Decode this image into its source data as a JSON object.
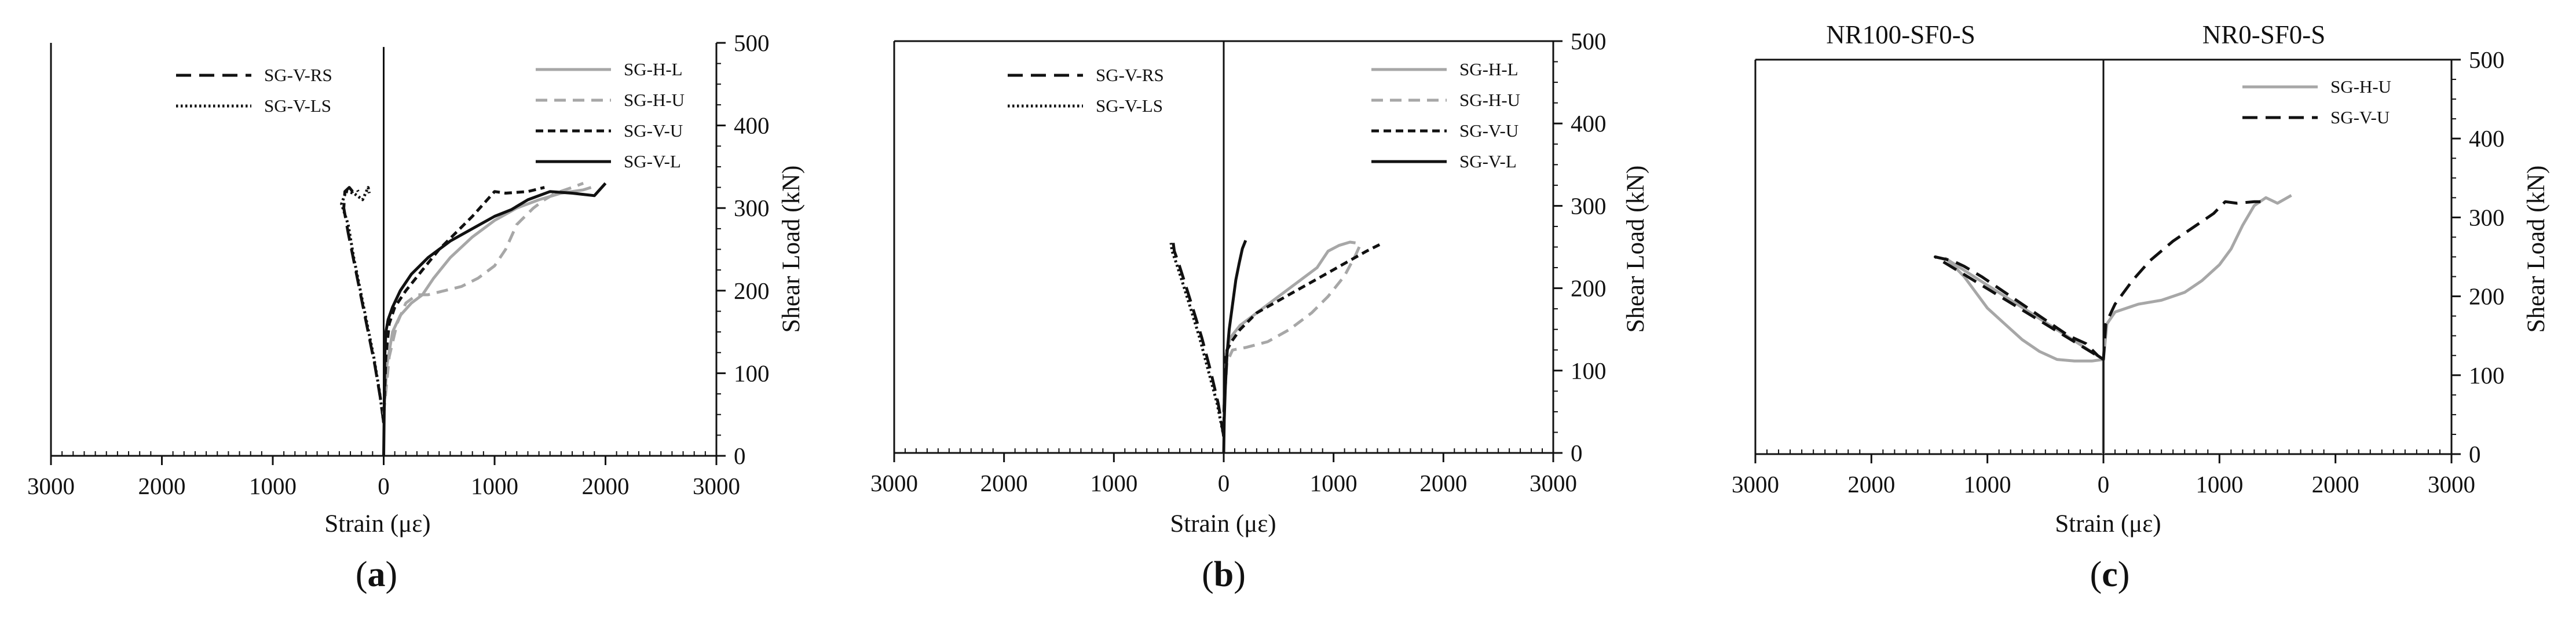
{
  "colors": {
    "axis": "#111111",
    "black": "#111111",
    "gray": "#a7a7a7"
  },
  "chart_data": [
    {
      "type": "line",
      "panel_label": "(a)",
      "subtitles": [],
      "xlabel": "Strain (με)",
      "ylabel": "Shear Load (kN)",
      "xlim": [
        -3000,
        3000
      ],
      "ylim": [
        0,
        500
      ],
      "x_ticks": [
        -3000,
        -2000,
        -1000,
        0,
        1000,
        2000,
        3000
      ],
      "x_tick_labels": [
        "3000",
        "2000",
        "1000",
        "0",
        "1000",
        "2000",
        "3000"
      ],
      "y_ticks": [
        0,
        100,
        200,
        300,
        400,
        500
      ],
      "y_tick_labels": [
        "0",
        "100",
        "200",
        "300",
        "400",
        "500"
      ],
      "frame": "left-top-open",
      "legends": [
        {
          "placement": "top-left",
          "entries": [
            "SG-V-RS",
            "SG-V-LS"
          ]
        },
        {
          "placement": "top-right",
          "entries": [
            "SG-H-L",
            "SG-H-U",
            "SG-V-U",
            "SG-V-L"
          ]
        }
      ],
      "series": [
        {
          "name": "SG-V-RS",
          "color": "black",
          "dash": "long",
          "x": [
            0,
            -30,
            -80,
            -140,
            -200,
            -260,
            -320,
            -360,
            -350,
            -310,
            -280,
            -250,
            -230
          ],
          "y": [
            40,
            70,
            110,
            150,
            190,
            230,
            270,
            300,
            320,
            325,
            320,
            325,
            320
          ]
        },
        {
          "name": "SG-V-LS",
          "color": "black",
          "dash": "dot",
          "x": [
            0,
            -40,
            -90,
            -150,
            -210,
            -270,
            -320,
            -380,
            -340,
            -270,
            -190,
            -140,
            -130
          ],
          "y": [
            40,
            80,
            120,
            160,
            200,
            240,
            280,
            305,
            320,
            318,
            310,
            325,
            318
          ]
        },
        {
          "name": "SG-H-L",
          "color": "gray",
          "dash": "solid",
          "x": [
            0,
            30,
            80,
            150,
            250,
            350,
            450,
            600,
            800,
            1000,
            1200,
            1400,
            1600,
            1800,
            1870
          ],
          "y": [
            50,
            110,
            150,
            170,
            185,
            195,
            215,
            240,
            265,
            285,
            300,
            310,
            318,
            322,
            325
          ]
        },
        {
          "name": "SG-H-U",
          "color": "gray",
          "dash": "dash",
          "x": [
            0,
            50,
            120,
            200,
            300,
            400,
            550,
            700,
            850,
            1000,
            1100,
            1200,
            1350,
            1450,
            1550,
            1700,
            1800
          ],
          "y": [
            50,
            120,
            160,
            185,
            195,
            195,
            200,
            205,
            215,
            230,
            250,
            280,
            300,
            310,
            318,
            325,
            330
          ]
        },
        {
          "name": "SG-V-U",
          "color": "black",
          "dash": "short",
          "x": [
            0,
            20,
            50,
            100,
            200,
            350,
            500,
            650,
            800,
            900,
            1000,
            1100,
            1300,
            1450
          ],
          "y": [
            40,
            120,
            160,
            180,
            200,
            225,
            250,
            270,
            290,
            305,
            320,
            318,
            320,
            325
          ]
        },
        {
          "name": "SG-V-L",
          "color": "black",
          "dash": "solid",
          "x": [
            0,
            5,
            10,
            20,
            40,
            80,
            150,
            250,
            400,
            600,
            800,
            1000,
            1150,
            1300,
            1500,
            1700,
            1900,
            2000
          ],
          "y": [
            0,
            60,
            120,
            150,
            165,
            180,
            200,
            220,
            240,
            260,
            275,
            290,
            298,
            310,
            320,
            318,
            315,
            330
          ]
        },
        {
          "name": "baseline",
          "color": "black",
          "dash": "solid",
          "x": [
            0,
            0
          ],
          "y": [
            0,
            495
          ]
        }
      ]
    },
    {
      "type": "line",
      "panel_label": "(b)",
      "subtitles": [],
      "xlabel": "Strain (με)",
      "ylabel": "Shear Load (kN)",
      "xlim": [
        -3000,
        3000
      ],
      "ylim": [
        0,
        500
      ],
      "x_ticks": [
        -3000,
        -2000,
        -1000,
        0,
        1000,
        2000,
        3000
      ],
      "x_tick_labels": [
        "3000",
        "2000",
        "1000",
        "0",
        "1000",
        "2000",
        "3000"
      ],
      "y_ticks": [
        0,
        100,
        200,
        300,
        400,
        500
      ],
      "y_tick_labels": [
        "0",
        "100",
        "200",
        "300",
        "400",
        "500"
      ],
      "frame": "boxed",
      "legends": [
        {
          "placement": "top-left",
          "entries": [
            "SG-V-RS",
            "SG-V-LS"
          ]
        },
        {
          "placement": "top-right",
          "entries": [
            "SG-H-L",
            "SG-H-U",
            "SG-V-U",
            "SG-V-L"
          ]
        }
      ],
      "series": [
        {
          "name": "SG-V-RS",
          "color": "black",
          "dash": "long",
          "x": [
            0,
            -50,
            -120,
            -200,
            -280,
            -350,
            -410,
            -450,
            -460
          ],
          "y": [
            20,
            60,
            100,
            140,
            175,
            205,
            230,
            245,
            255
          ]
        },
        {
          "name": "SG-V-LS",
          "color": "black",
          "dash": "dot",
          "x": [
            0,
            -60,
            -140,
            -220,
            -300,
            -370,
            -430,
            -470,
            -480
          ],
          "y": [
            20,
            60,
            100,
            140,
            175,
            205,
            230,
            245,
            255
          ]
        },
        {
          "name": "SG-H-L",
          "color": "gray",
          "dash": "solid",
          "x": [
            0,
            20,
            60,
            150,
            300,
            500,
            700,
            850,
            950,
            1050,
            1150,
            1200
          ],
          "y": [
            50,
            120,
            140,
            155,
            170,
            190,
            210,
            225,
            245,
            252,
            256,
            255
          ]
        },
        {
          "name": "SG-H-U",
          "color": "gray",
          "dash": "dash",
          "x": [
            0,
            30,
            80,
            200,
            400,
            600,
            800,
            950,
            1100,
            1200,
            1250
          ],
          "y": [
            50,
            110,
            125,
            128,
            135,
            150,
            170,
            190,
            215,
            240,
            255
          ]
        },
        {
          "name": "SG-V-U",
          "color": "black",
          "dash": "short",
          "x": [
            0,
            10,
            30,
            70,
            150,
            300,
            500,
            700,
            900,
            1100,
            1300,
            1450
          ],
          "y": [
            20,
            110,
            125,
            135,
            150,
            170,
            185,
            200,
            215,
            230,
            245,
            255
          ]
        },
        {
          "name": "SG-V-L",
          "color": "black",
          "dash": "solid",
          "x": [
            0,
            5,
            15,
            30,
            50,
            80,
            110,
            140,
            170,
            200
          ],
          "y": [
            0,
            40,
            80,
            120,
            150,
            180,
            210,
            230,
            248,
            258
          ]
        },
        {
          "name": "baseline",
          "color": "black",
          "dash": "solid",
          "x": [
            0,
            0
          ],
          "y": [
            0,
            500
          ]
        }
      ]
    },
    {
      "type": "line",
      "panel_label": "(c)",
      "subtitles": [
        "NR100-SF0-S",
        "NR0-SF0-S"
      ],
      "xlabel": "Strain (με)",
      "ylabel": "Shear Load (kN)",
      "xlim": [
        -3000,
        3000
      ],
      "ylim": [
        0,
        500
      ],
      "x_ticks": [
        -3000,
        -2000,
        -1000,
        0,
        1000,
        2000,
        3000
      ],
      "x_tick_labels": [
        "3000",
        "2000",
        "1000",
        "0",
        "1000",
        "2000",
        "3000"
      ],
      "y_ticks": [
        0,
        100,
        200,
        300,
        400,
        500
      ],
      "y_tick_labels": [
        "0",
        "100",
        "200",
        "300",
        "400",
        "500"
      ],
      "frame": "boxed",
      "legends": [
        {
          "placement": "top-right",
          "entries": [
            "SG-H-U",
            "SG-V-U"
          ]
        }
      ],
      "series": [
        {
          "name": "SG-H-U",
          "color": "gray",
          "dash": "solid",
          "x": [
            0,
            0,
            -100,
            -250,
            -400,
            -550,
            -700,
            -850,
            -1000,
            -1100,
            -1200,
            -1300,
            -1360,
            0,
            30,
            100,
            300,
            500,
            700,
            850,
            1000,
            1100,
            1200,
            1300,
            1400,
            1500,
            1620
          ],
          "y": [
            0,
            120,
            118,
            118,
            120,
            130,
            145,
            165,
            185,
            205,
            225,
            240,
            248,
            120,
            165,
            180,
            190,
            195,
            205,
            220,
            240,
            260,
            290,
            315,
            325,
            318,
            328
          ]
        },
        {
          "name": "SG-V-U",
          "color": "black",
          "dash": "long",
          "x": [
            0,
            -50,
            -150,
            -300,
            -450,
            -600,
            -750,
            -900,
            -1050,
            -1200,
            -1300,
            -1450,
            0,
            20,
            100,
            250,
            400,
            600,
            800,
            950,
            1050,
            1150,
            1300,
            1400
          ],
          "y": [
            120,
            125,
            140,
            150,
            165,
            180,
            195,
            210,
            225,
            238,
            245,
            250,
            120,
            165,
            190,
            220,
            245,
            270,
            290,
            305,
            320,
            318,
            320,
            320
          ]
        },
        {
          "name": "baseline",
          "color": "black",
          "dash": "solid",
          "x": [
            0,
            0
          ],
          "y": [
            0,
            500
          ]
        }
      ]
    }
  ]
}
